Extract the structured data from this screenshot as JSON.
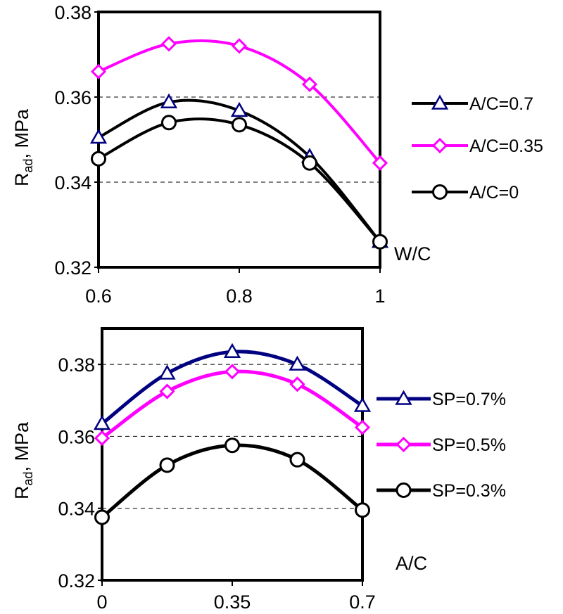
{
  "chart_data": [
    {
      "type": "line",
      "xlabel": "W/C",
      "ylabel": "R",
      "ylabel_sub": "ad",
      "ylabel_unit": ", MPa",
      "xlim": [
        0.6,
        1.0
      ],
      "ylim": [
        0.32,
        0.38
      ],
      "xticks": [
        0.6,
        0.8,
        1.0
      ],
      "xtick_labels": [
        "0.6",
        "0.8",
        "1"
      ],
      "yticks": [
        0.32,
        0.34,
        0.36,
        0.38
      ],
      "ytick_labels": [
        "0.32",
        "0.34",
        "0.36",
        "0.38"
      ],
      "grid": "horizontal",
      "legend_position": "right",
      "series": [
        {
          "name": "A/C=0.7",
          "x": [
            0.6,
            0.7,
            0.8,
            0.9,
            1.0
          ],
          "values": [
            0.3505,
            0.3588,
            0.3568,
            0.346,
            0.326
          ],
          "color": "#000000",
          "marker": "triangle"
        },
        {
          "name": "A/C=0.35",
          "x": [
            0.6,
            0.7,
            0.8,
            0.9,
            1.0
          ],
          "values": [
            0.366,
            0.3725,
            0.372,
            0.363,
            0.3445
          ],
          "color": "#ff00ff",
          "marker": "diamond"
        },
        {
          "name": "A/C=0",
          "x": [
            0.6,
            0.7,
            0.8,
            0.9,
            1.0
          ],
          "values": [
            0.3455,
            0.354,
            0.3535,
            0.3445,
            0.326
          ],
          "color": "#000000",
          "marker": "circle"
        }
      ]
    },
    {
      "type": "line",
      "xlabel": "A/C",
      "ylabel": "R",
      "ylabel_sub": "ad",
      "ylabel_unit": ", MPa",
      "xlim": [
        0,
        0.7
      ],
      "ylim": [
        0.32,
        0.39
      ],
      "xticks": [
        0,
        0.35,
        0.7
      ],
      "xtick_labels": [
        "0",
        "0.35",
        "0.7"
      ],
      "yticks": [
        0.32,
        0.34,
        0.36,
        0.38
      ],
      "ytick_labels": [
        "0.32",
        "0.34",
        "0.36",
        "0.38"
      ],
      "grid": "horizontal",
      "legend_position": "right",
      "series": [
        {
          "name": "SP=0.7%",
          "x": [
            0,
            0.175,
            0.35,
            0.525,
            0.7
          ],
          "values": [
            0.3635,
            0.3775,
            0.3835,
            0.38,
            0.3685
          ],
          "color": "#000080",
          "marker": "triangle"
        },
        {
          "name": "SP=0.5%",
          "x": [
            0,
            0.175,
            0.35,
            0.525,
            0.7
          ],
          "values": [
            0.3595,
            0.3725,
            0.378,
            0.3745,
            0.3625
          ],
          "color": "#ff00ff",
          "marker": "diamond"
        },
        {
          "name": "SP=0.3%",
          "x": [
            0,
            0.175,
            0.35,
            0.525,
            0.7
          ],
          "values": [
            0.3375,
            0.352,
            0.3575,
            0.3535,
            0.3395
          ],
          "color": "#000000",
          "marker": "circle"
        }
      ]
    }
  ]
}
